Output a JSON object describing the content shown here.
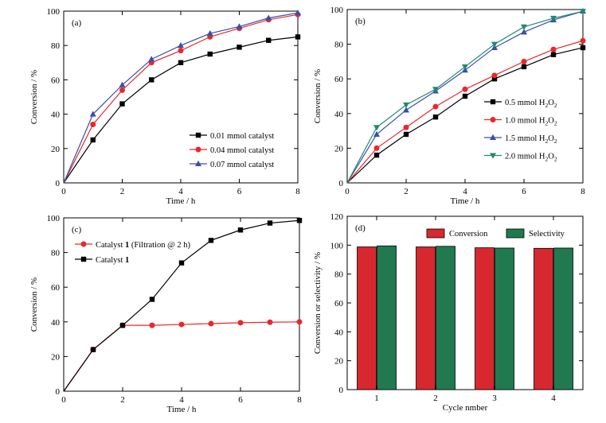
{
  "chart_data": [
    {
      "type": "line",
      "panel_label": "(a)",
      "xlabel": "Time / h",
      "ylabel": "Conversion / %",
      "xlim": [
        0,
        8
      ],
      "ylim": [
        0,
        100
      ],
      "xticks": [
        0,
        2,
        4,
        6,
        8
      ],
      "yticks": [
        0,
        20,
        40,
        60,
        80,
        100
      ],
      "legend_position": "center-right",
      "x": [
        0,
        1,
        2,
        3,
        4,
        5,
        6,
        7,
        8
      ],
      "series": [
        {
          "name": "0.01 mmol catalyst",
          "color": "#000000",
          "marker": "square",
          "values": [
            0,
            25,
            46,
            60,
            70,
            75,
            79,
            83,
            85
          ]
        },
        {
          "name": "0.04 mmol catalyst",
          "color": "#e8282b",
          "marker": "circle",
          "values": [
            0,
            34,
            54,
            70,
            77,
            85,
            90,
            95,
            98
          ]
        },
        {
          "name": "0.07 mmol catalyst",
          "color": "#3a4fa8",
          "marker": "triangle-up",
          "values": [
            0,
            40,
            57,
            72,
            80,
            87,
            91,
            96,
            99
          ]
        }
      ]
    },
    {
      "type": "line",
      "panel_label": "(b)",
      "xlabel": "Time / h",
      "ylabel": "Conversion / %",
      "xlim": [
        0,
        8
      ],
      "ylim": [
        0,
        100
      ],
      "xticks": [
        0,
        2,
        4,
        6,
        8
      ],
      "yticks": [
        0,
        20,
        40,
        60,
        80,
        100
      ],
      "legend_position": "bottom-right",
      "x": [
        0,
        1,
        2,
        3,
        4,
        5,
        6,
        7,
        8
      ],
      "series": [
        {
          "name": "0.5 mmol H",
          "sub": "2",
          "tail": "O",
          "sub2": "2",
          "color": "#000000",
          "marker": "square",
          "values": [
            0,
            16,
            28,
            38,
            50,
            60,
            67,
            74,
            78
          ]
        },
        {
          "name": "1.0 mmol H",
          "sub": "2",
          "tail": "O",
          "sub2": "2",
          "color": "#e8282b",
          "marker": "circle",
          "values": [
            0,
            20,
            32,
            44,
            54,
            62,
            70,
            77,
            82
          ]
        },
        {
          "name": "1.5 mmol H",
          "sub": "2",
          "tail": "O",
          "sub2": "2",
          "color": "#3a4fa8",
          "marker": "triangle-up",
          "values": [
            0,
            28,
            42,
            53,
            65,
            78,
            87,
            94,
            99
          ]
        },
        {
          "name": "2.0 mmol H",
          "sub": "2",
          "tail": "O",
          "sub2": "2",
          "color": "#1f8a6e",
          "marker": "triangle-down",
          "values": [
            0,
            32,
            45,
            54,
            67,
            80,
            90,
            95,
            99
          ]
        }
      ]
    },
    {
      "type": "line",
      "panel_label": "(c)",
      "xlabel": "Time / h",
      "ylabel": "Conversion / %",
      "xlim": [
        0,
        8
      ],
      "ylim": [
        0,
        100
      ],
      "xticks": [
        0,
        2,
        4,
        6,
        8
      ],
      "yticks": [
        0,
        20,
        40,
        60,
        80,
        100
      ],
      "legend_position": "top-left",
      "x": [
        0,
        1,
        2,
        3,
        4,
        5,
        6,
        7,
        8
      ],
      "series": [
        {
          "name": "Catalyst ",
          "bold": "1",
          "tail": " (Filtration @ 2 h)",
          "color": "#e8282b",
          "marker": "circle",
          "values": [
            0,
            24,
            38,
            38,
            38.5,
            39,
            39.5,
            39.8,
            40
          ]
        },
        {
          "name": "Catalyst ",
          "bold": "1",
          "tail": "",
          "color": "#000000",
          "marker": "square",
          "values": [
            0,
            24,
            38,
            53,
            74,
            87,
            93,
            97,
            98.5
          ]
        }
      ]
    },
    {
      "type": "bar",
      "panel_label": "(d)",
      "xlabel": "Cycle nmber",
      "ylabel": "Conversion or selectivity / %",
      "ylim": [
        0,
        120
      ],
      "yticks": [
        0,
        20,
        40,
        60,
        80,
        100,
        120
      ],
      "legend_position": "top",
      "categories": [
        "1",
        "2",
        "3",
        "4"
      ],
      "series": [
        {
          "name": "Conversion",
          "color": "#d7282f",
          "values": [
            98.8,
            98.8,
            98.2,
            97.8
          ]
        },
        {
          "name": "Selectivity",
          "color": "#217a4f",
          "values": [
            99.5,
            99.2,
            98.0,
            98.0
          ]
        }
      ]
    }
  ]
}
